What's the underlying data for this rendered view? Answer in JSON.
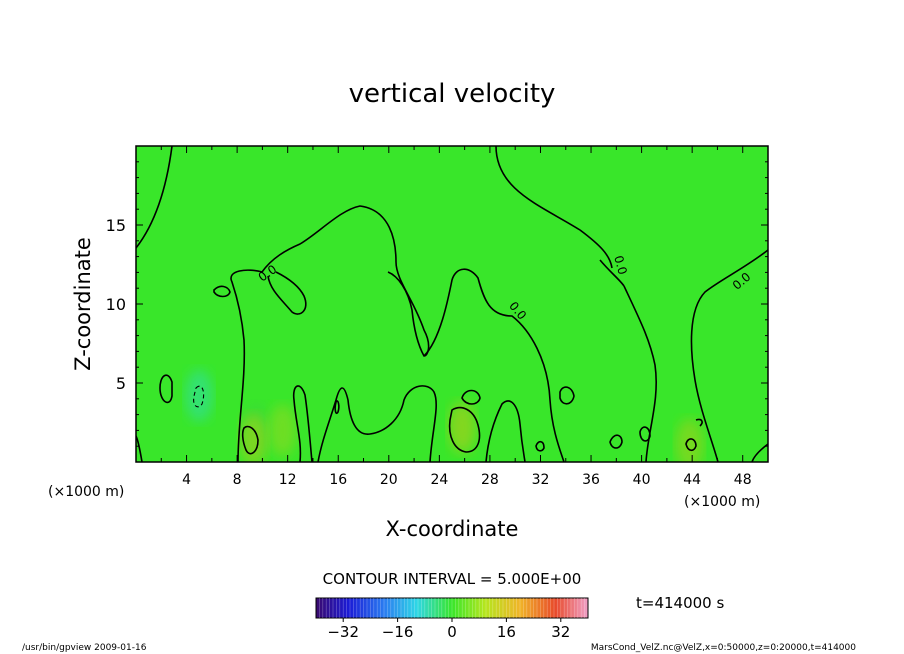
{
  "chart_data": {
    "type": "heatmap",
    "title": "vertical velocity",
    "xlabel": "X-coordinate",
    "ylabel": "Z-coordinate",
    "x_unit": "(×1000 m)",
    "y_unit": "(×1000 m)",
    "xlim": [
      0,
      50
    ],
    "ylim": [
      0,
      20
    ],
    "x_ticks": [
      4,
      8,
      12,
      16,
      20,
      24,
      28,
      32,
      36,
      40,
      44,
      48
    ],
    "y_ticks": [
      5,
      10,
      15
    ],
    "field_color": "#39e62a",
    "contour_interval_label": "CONTOUR INTERVAL = 5.000E+00",
    "time_label": "t=414000 s",
    "contour_labels": [
      "0.0",
      "0.0",
      "0.0",
      "0.0"
    ],
    "colorbar": {
      "range": [
        -40,
        40
      ],
      "tick_values": [
        -32,
        -16,
        0,
        16,
        32
      ],
      "tick_labels": [
        "−32",
        "−16",
        "0",
        "16",
        "32"
      ]
    },
    "negative_patches": [
      {
        "x": 5.0,
        "z": 4.2,
        "color": "#32e08a"
      },
      {
        "x": 9.5,
        "z": 2.0,
        "color": "#3ed83a"
      }
    ],
    "positive_patches": [
      {
        "x": 9.3,
        "z": 1.4,
        "color": "#8fd41c"
      },
      {
        "x": 25.8,
        "z": 2.2,
        "color": "#9bd21a"
      },
      {
        "x": 11.6,
        "z": 2.0,
        "color": "#7fdc20"
      },
      {
        "x": 43.8,
        "z": 1.1,
        "color": "#8ad61e"
      }
    ]
  },
  "footer": {
    "left": "/usr/bin/gpview   2009-01-16",
    "right": "MarsCond_VelZ.nc@VelZ,x=0:50000,z=0:20000,t=414000"
  }
}
